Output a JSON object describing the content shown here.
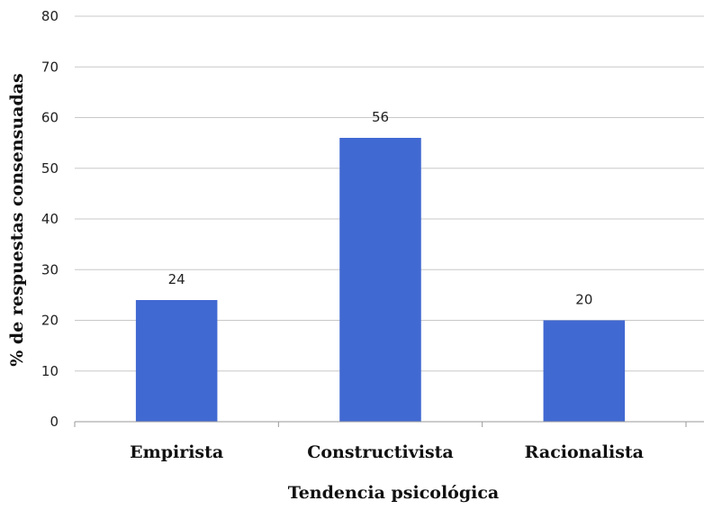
{
  "chart_data": {
    "type": "bar",
    "categories": [
      "Empirista",
      "Constructivista",
      "Racionalista"
    ],
    "values": [
      24,
      56,
      20
    ],
    "data_labels": [
      "24",
      "56",
      "20"
    ],
    "title": "",
    "xlabel": "Tendencia psicológica",
    "ylabel": "% de respuestas consensuadas",
    "ylim": [
      0,
      80
    ],
    "yticks": [
      0,
      10,
      20,
      30,
      40,
      50,
      60,
      70,
      80
    ],
    "grid": true,
    "bar_color": "#4169D2"
  }
}
